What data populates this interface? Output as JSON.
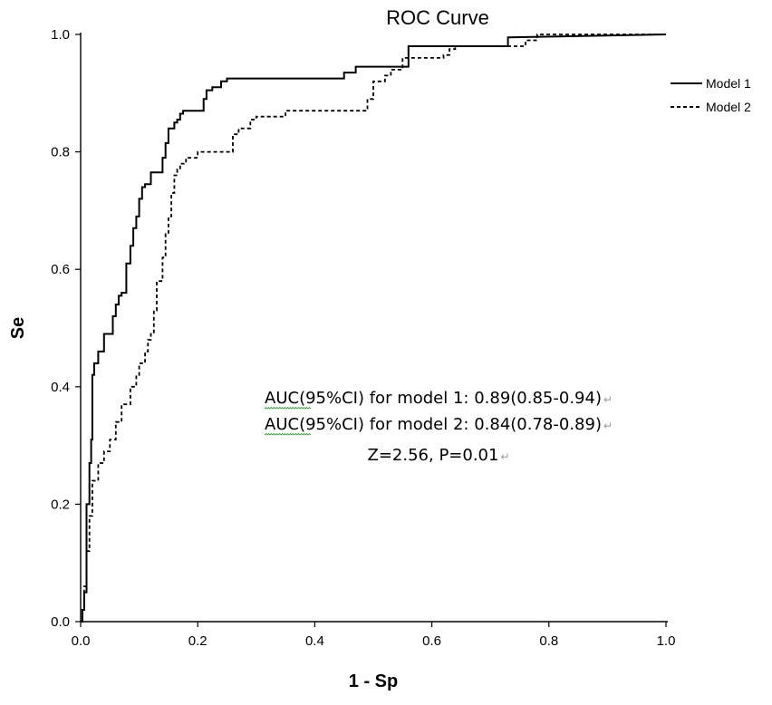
{
  "chart_data": {
    "type": "line",
    "title": "ROC Curve",
    "xlabel": "1 - Sp",
    "ylabel": "Se",
    "xlim": [
      0,
      1
    ],
    "ylim": [
      0,
      1
    ],
    "xticks": [
      "0.0",
      "0.2",
      "0.4",
      "0.6",
      "0.8",
      "1.0"
    ],
    "yticks": [
      "0.0",
      "0.2",
      "0.4",
      "0.6",
      "0.8",
      "1.0"
    ],
    "grid": false,
    "legend": "right",
    "series": [
      {
        "name": "Model 1",
        "style": "solid",
        "color": "#000000",
        "x": [
          0,
          0.003,
          0.003,
          0.006,
          0.006,
          0.01,
          0.01,
          0.015,
          0.015,
          0.018,
          0.018,
          0.02,
          0.02,
          0.023,
          0.023,
          0.03,
          0.03,
          0.04,
          0.04,
          0.055,
          0.055,
          0.06,
          0.06,
          0.065,
          0.065,
          0.07,
          0.07,
          0.078,
          0.078,
          0.085,
          0.085,
          0.09,
          0.09,
          0.095,
          0.095,
          0.1,
          0.1,
          0.105,
          0.105,
          0.11,
          0.11,
          0.115,
          0.115,
          0.12,
          0.12,
          0.14,
          0.14,
          0.145,
          0.145,
          0.15,
          0.15,
          0.16,
          0.16,
          0.165,
          0.165,
          0.17,
          0.17,
          0.175,
          0.175,
          0.18,
          0.18,
          0.21,
          0.21,
          0.215,
          0.215,
          0.225,
          0.225,
          0.24,
          0.24,
          0.25,
          0.25,
          0.45,
          0.45,
          0.47,
          0.47,
          0.56,
          0.56,
          0.73,
          0.73,
          1.0
        ],
        "y": [
          0,
          0,
          0.02,
          0.02,
          0.05,
          0.05,
          0.2,
          0.2,
          0.27,
          0.27,
          0.31,
          0.31,
          0.42,
          0.42,
          0.44,
          0.44,
          0.46,
          0.46,
          0.49,
          0.49,
          0.52,
          0.52,
          0.54,
          0.54,
          0.555,
          0.555,
          0.56,
          0.56,
          0.61,
          0.61,
          0.64,
          0.64,
          0.67,
          0.67,
          0.69,
          0.69,
          0.72,
          0.72,
          0.74,
          0.74,
          0.745,
          0.745,
          0.745,
          0.745,
          0.765,
          0.765,
          0.79,
          0.79,
          0.815,
          0.815,
          0.84,
          0.84,
          0.85,
          0.85,
          0.855,
          0.855,
          0.865,
          0.865,
          0.87,
          0.87,
          0.87,
          0.87,
          0.89,
          0.89,
          0.905,
          0.905,
          0.91,
          0.91,
          0.92,
          0.92,
          0.925,
          0.925,
          0.935,
          0.935,
          0.945,
          0.945,
          0.98,
          0.98,
          0.995,
          1.0
        ]
      },
      {
        "name": "Model 2",
        "style": "dashed",
        "color": "#000000",
        "x": [
          0,
          0.003,
          0.003,
          0.006,
          0.006,
          0.01,
          0.01,
          0.015,
          0.015,
          0.02,
          0.02,
          0.03,
          0.03,
          0.04,
          0.04,
          0.05,
          0.05,
          0.06,
          0.06,
          0.07,
          0.07,
          0.085,
          0.085,
          0.095,
          0.095,
          0.1,
          0.1,
          0.11,
          0.11,
          0.115,
          0.115,
          0.12,
          0.12,
          0.125,
          0.125,
          0.13,
          0.13,
          0.14,
          0.14,
          0.145,
          0.145,
          0.15,
          0.15,
          0.155,
          0.155,
          0.16,
          0.16,
          0.165,
          0.165,
          0.17,
          0.17,
          0.18,
          0.18,
          0.2,
          0.2,
          0.26,
          0.26,
          0.27,
          0.27,
          0.29,
          0.29,
          0.3,
          0.3,
          0.35,
          0.35,
          0.49,
          0.49,
          0.5,
          0.5,
          0.52,
          0.52,
          0.53,
          0.53,
          0.55,
          0.55,
          0.62,
          0.62,
          0.63,
          0.63,
          0.64,
          0.64,
          0.65,
          0.65,
          0.76,
          0.76,
          0.78,
          0.78,
          1.0
        ],
        "y": [
          0,
          0,
          0.02,
          0.02,
          0.06,
          0.06,
          0.12,
          0.12,
          0.18,
          0.18,
          0.24,
          0.24,
          0.27,
          0.27,
          0.29,
          0.29,
          0.31,
          0.31,
          0.34,
          0.34,
          0.37,
          0.37,
          0.4,
          0.4,
          0.42,
          0.42,
          0.44,
          0.44,
          0.46,
          0.46,
          0.48,
          0.48,
          0.49,
          0.49,
          0.53,
          0.53,
          0.58,
          0.58,
          0.62,
          0.62,
          0.66,
          0.66,
          0.69,
          0.69,
          0.73,
          0.73,
          0.76,
          0.76,
          0.77,
          0.77,
          0.78,
          0.78,
          0.79,
          0.79,
          0.8,
          0.8,
          0.83,
          0.83,
          0.84,
          0.84,
          0.855,
          0.855,
          0.86,
          0.86,
          0.87,
          0.87,
          0.89,
          0.89,
          0.92,
          0.92,
          0.93,
          0.93,
          0.94,
          0.94,
          0.96,
          0.96,
          0.965,
          0.965,
          0.975,
          0.975,
          0.98,
          0.98,
          0.98,
          0.98,
          0.99,
          0.99,
          1.0,
          1.0
        ]
      }
    ],
    "annotations": [
      "AUC(95%CI) for model 1: 0.89(0.85-0.94)",
      "AUC(95%CI) for model 2: 0.84(0.78-0.89)",
      "Z=2.56, P=0.01"
    ],
    "annotation_mark": "↵"
  }
}
